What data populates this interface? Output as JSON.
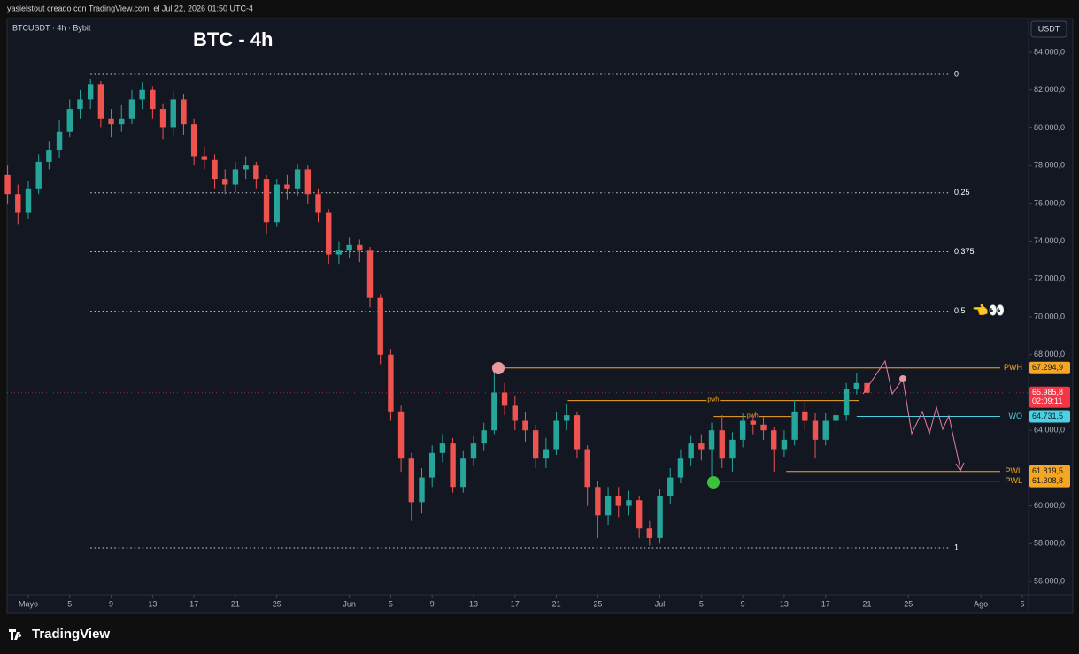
{
  "header": "yasielstout creado con TradingView.com, el Jul 22, 2026 01:50 UTC-4",
  "footer_brand": "TradingView",
  "chart_data": {
    "type": "candlestick",
    "title": "BTC - 4h",
    "symbol": "BTCUSDT · 4h · Bybit",
    "currency": "USDT",
    "up_color": "#26a69a",
    "down_color": "#ef5350",
    "x": [
      -2,
      -1,
      0,
      1,
      2,
      3,
      4,
      5,
      6,
      7,
      8,
      9,
      10,
      11,
      12,
      13,
      14,
      15,
      16,
      17,
      18,
      19,
      20,
      21,
      22,
      23,
      24,
      25,
      26,
      27,
      28,
      29,
      30,
      31,
      32,
      33,
      34,
      35,
      36,
      37,
      38,
      39,
      40,
      41,
      42,
      43,
      44,
      45,
      46,
      47,
      48,
      49,
      50,
      51,
      52,
      53,
      54,
      55,
      56,
      57,
      58,
      59,
      60,
      61,
      62,
      63,
      64,
      65,
      66,
      67,
      68,
      69,
      70,
      71,
      72,
      73,
      74,
      75,
      76,
      77,
      78,
      79,
      80,
      81
    ],
    "open": [
      77500,
      76500,
      75500,
      76800,
      78200,
      78800,
      79800,
      81000,
      81500,
      82300,
      80500,
      80200,
      80500,
      81500,
      82000,
      81000,
      80000,
      81500,
      80200,
      78500,
      78300,
      77300,
      77000,
      77800,
      78000,
      77300,
      75000,
      77000,
      76800,
      77800,
      76500,
      75500,
      73300,
      73500,
      73800,
      73500,
      71000,
      68000,
      65000,
      62500,
      60200,
      61500,
      62800,
      63300,
      61000,
      62500,
      63300,
      64000,
      66000,
      65300,
      64500,
      64000,
      62500,
      63000,
      64500,
      64800,
      63000,
      61000,
      59500,
      60500,
      60000,
      60300,
      58800,
      58300,
      60500,
      61500,
      62500,
      63300,
      63000,
      64000,
      62500,
      63500,
      64500,
      64300,
      64000,
      63000,
      63500,
      65000,
      64500,
      63500,
      64500,
      64800,
      66200,
      66500
    ],
    "high": [
      78000,
      77000,
      77200,
      78600,
      79300,
      80400,
      81500,
      82000,
      82600,
      82500,
      81000,
      81200,
      82000,
      82400,
      82200,
      81300,
      81900,
      81800,
      80500,
      79000,
      78600,
      77800,
      78200,
      78500,
      78200,
      77500,
      77300,
      77500,
      78100,
      78000,
      76800,
      75700,
      74000,
      74200,
      74100,
      73700,
      71200,
      68300,
      65300,
      62800,
      62000,
      63200,
      63800,
      63600,
      62900,
      63700,
      64400,
      67300,
      66500,
      65800,
      65000,
      64300,
      63600,
      65000,
      65400,
      65000,
      63200,
      61300,
      61000,
      61000,
      60800,
      60500,
      59200,
      60900,
      62000,
      63000,
      63700,
      63800,
      64400,
      64800,
      63900,
      64900,
      64800,
      64700,
      64200,
      64000,
      65600,
      65500,
      64900,
      64900,
      65300,
      66500,
      67000,
      66700
    ],
    "low": [
      76000,
      74900,
      75200,
      76500,
      77800,
      78400,
      79500,
      80500,
      81000,
      80000,
      79500,
      79800,
      80200,
      81000,
      80500,
      79400,
      79600,
      79600,
      78000,
      77800,
      76800,
      76500,
      76600,
      77300,
      76800,
      74400,
      74800,
      76200,
      76400,
      76000,
      75000,
      72800,
      72800,
      73100,
      72900,
      70500,
      67500,
      64500,
      61800,
      59200,
      59600,
      61000,
      62300,
      60700,
      60700,
      62100,
      62900,
      63800,
      64800,
      64000,
      63400,
      62000,
      62000,
      62700,
      64000,
      62500,
      60000,
      58300,
      59000,
      59400,
      59500,
      58300,
      57900,
      58000,
      60100,
      61200,
      62100,
      62400,
      61300,
      62000,
      61800,
      63100,
      63800,
      63500,
      61800,
      62600,
      63200,
      64000,
      62500,
      63200,
      64200,
      64500,
      65900,
      65700
    ],
    "close": [
      76500,
      75500,
      76800,
      78200,
      78800,
      79800,
      81000,
      81500,
      82300,
      80500,
      80200,
      80500,
      81500,
      82000,
      81000,
      80000,
      81500,
      80200,
      78500,
      78300,
      77300,
      77000,
      77800,
      78000,
      77300,
      75000,
      77000,
      76800,
      77800,
      76500,
      75500,
      73300,
      73500,
      73800,
      73500,
      71000,
      68000,
      65000,
      62500,
      60200,
      61500,
      62800,
      63300,
      61000,
      62500,
      63300,
      64000,
      66000,
      65300,
      64500,
      64000,
      62500,
      63000,
      64500,
      64800,
      63000,
      61000,
      59500,
      60500,
      60000,
      60300,
      58800,
      58300,
      60500,
      61500,
      62500,
      63300,
      63000,
      64000,
      62500,
      63500,
      64500,
      64300,
      64000,
      63000,
      63500,
      65000,
      64500,
      63500,
      64500,
      64800,
      66200,
      66500,
      65985.8
    ],
    "xlim": [
      -2.05,
      96.6
    ],
    "xticks": [
      {
        "value": 0,
        "label": "Mayo"
      },
      {
        "value": 4,
        "label": "5"
      },
      {
        "value": 8,
        "label": "9"
      },
      {
        "value": 12,
        "label": "13"
      },
      {
        "value": 16,
        "label": "17"
      },
      {
        "value": 20,
        "label": "21"
      },
      {
        "value": 24,
        "label": "25"
      },
      {
        "value": 31,
        "label": "Jun"
      },
      {
        "value": 35,
        "label": "5"
      },
      {
        "value": 39,
        "label": "9"
      },
      {
        "value": 43,
        "label": "13"
      },
      {
        "value": 47,
        "label": "17"
      },
      {
        "value": 51,
        "label": "21"
      },
      {
        "value": 55,
        "label": "25"
      },
      {
        "value": 61,
        "label": "Jul"
      },
      {
        "value": 65,
        "label": "5"
      },
      {
        "value": 69,
        "label": "9"
      },
      {
        "value": 73,
        "label": "13"
      },
      {
        "value": 77,
        "label": "17"
      },
      {
        "value": 81,
        "label": "21"
      },
      {
        "value": 85,
        "label": "25"
      },
      {
        "value": 92,
        "label": "Ago"
      },
      {
        "value": 96,
        "label": "5"
      }
    ],
    "ylim": [
      55300,
      85780
    ],
    "yticks": [
      {
        "value": 56000,
        "label": "56.000,0"
      },
      {
        "value": 58000,
        "label": "58.000,0"
      },
      {
        "value": 60000,
        "label": "60.000,0"
      },
      {
        "value": 62000,
        "label": "62.000,0"
      },
      {
        "value": 64000,
        "label": "64.000,0"
      },
      {
        "value": 66000,
        "label": "66.000,0"
      },
      {
        "value": 68000,
        "label": "68.000,0"
      },
      {
        "value": 70000,
        "label": "70.000,0"
      },
      {
        "value": 72000,
        "label": "72.000,0"
      },
      {
        "value": 74000,
        "label": "74.000,0"
      },
      {
        "value": 76000,
        "label": "76.000,0"
      },
      {
        "value": 78000,
        "label": "78.000,0"
      },
      {
        "value": 80000,
        "label": "80.000,0"
      },
      {
        "value": 82000,
        "label": "82.000,0"
      },
      {
        "value": 84000,
        "label": "84.000,0"
      }
    ],
    "fib_start": 6,
    "fib_levels": [
      {
        "label": "0",
        "value": 82830
      },
      {
        "label": "0,25",
        "value": 76570
      },
      {
        "label": "0,375",
        "value": 73440
      },
      {
        "label": "0,5",
        "value": 70300
      },
      {
        "label": "1",
        "value": 57780
      }
    ],
    "annotation": "👈👀",
    "levels": [
      {
        "name": "PWH",
        "value": 67294.9,
        "value_label": "67.294,9",
        "color": "#f5a623",
        "start": 45.4
      },
      {
        "name": "WO",
        "value": 64731.5,
        "value_label": "64.731,5",
        "color": "#4dd0e1",
        "start": 80
      },
      {
        "name": "PWL",
        "value": 61819.5,
        "value_label": "61.819,5",
        "color": "#f5a623",
        "start": 73.2
      },
      {
        "name": "PWL",
        "value": 61308.8,
        "value_label": "61.308,8",
        "color": "#f5a623",
        "start": 66.2
      }
    ],
    "minor_levels": [
      {
        "name": "pwh",
        "value": 65570,
        "start": 52.1,
        "end": 80.2
      },
      {
        "name": "pwh",
        "value": 64730,
        "start": 66.2,
        "end": 73.7
      }
    ],
    "current_price": {
      "value": 65985.8,
      "value_label": "65.985,8",
      "countdown": "02:09:11",
      "color": "#f23645"
    }
  }
}
